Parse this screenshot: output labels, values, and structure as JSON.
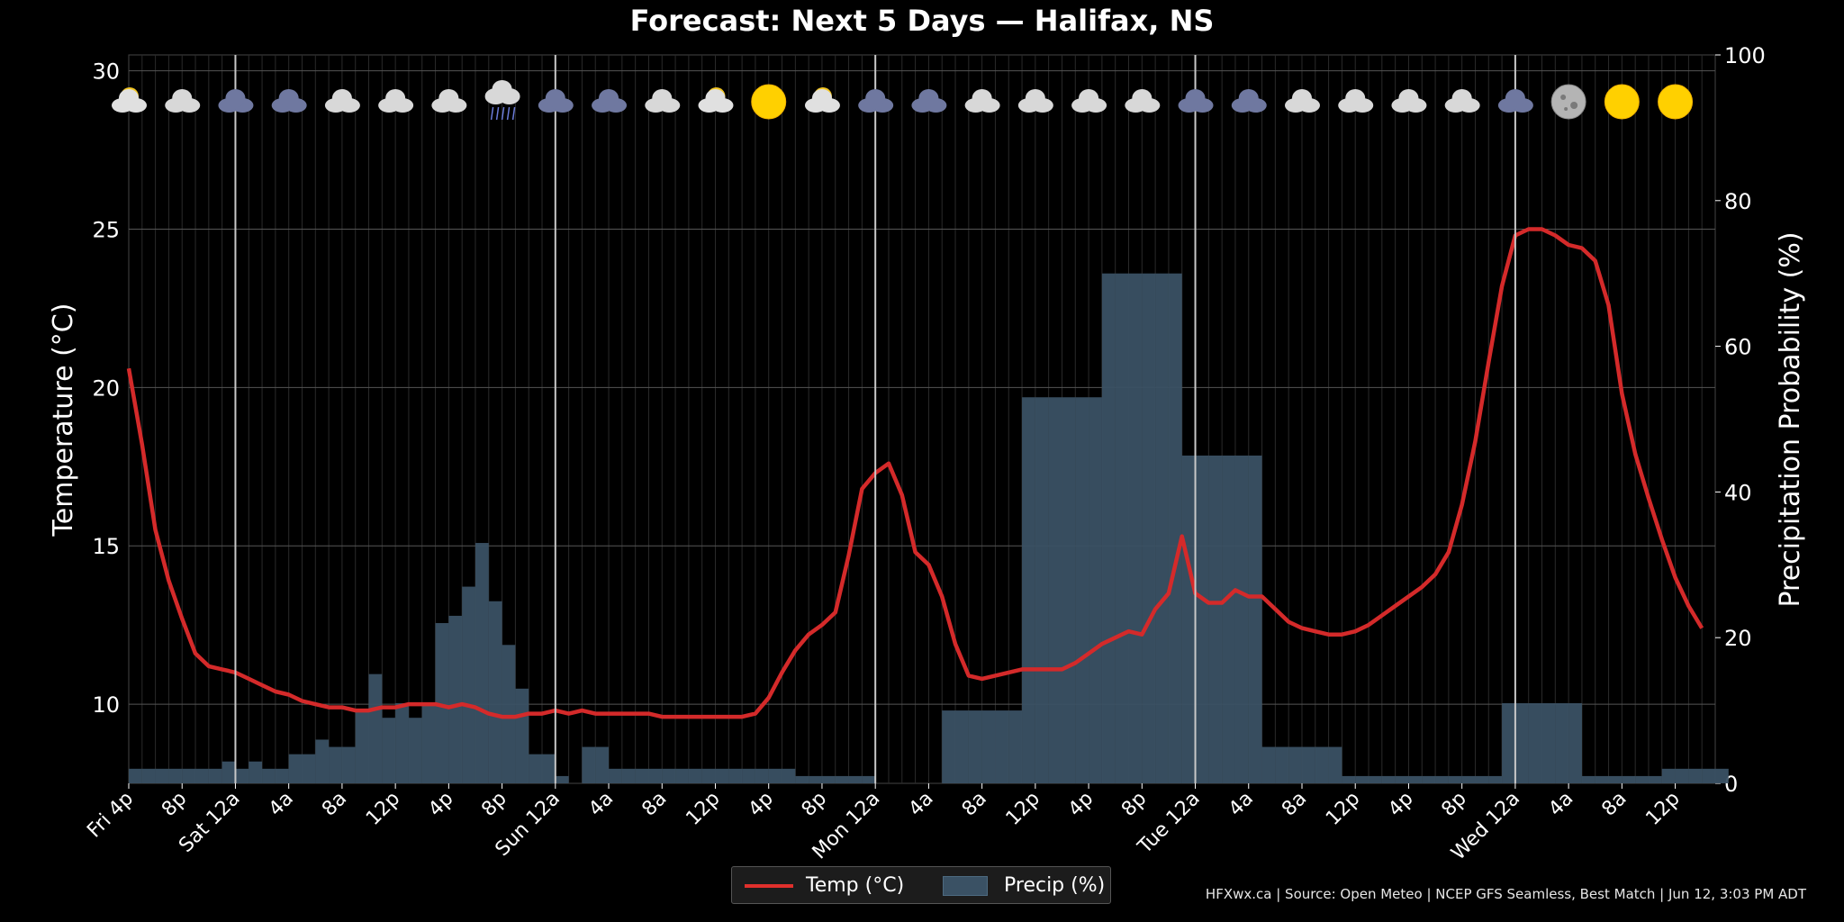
{
  "title": "Forecast: Next 5 Days — Halifax, NS",
  "footer": "HFXwx.ca | Source: Open Meteo | NCEP GFS Seamless, Best Match | Jun 12, 3:03 PM ADT",
  "legend": {
    "temp_label": "Temp (°C)",
    "precip_label": "Precip (%)"
  },
  "colors": {
    "temp": "#d42a2a",
    "precip": "#3a5164",
    "background": "#000000",
    "day_divider": "#c8c8c8"
  },
  "chart_data": {
    "type": "line",
    "title": "Forecast: Next 5 Days — Halifax, NS",
    "ylabel": "Temperature (°C)",
    "y2label": "Precipitation Probability (%)",
    "ylim": [
      7.5,
      30.5
    ],
    "y2lim": [
      0,
      100
    ],
    "yticks": [
      10,
      15,
      20,
      25,
      30
    ],
    "y2ticks": [
      0,
      20,
      40,
      60,
      80,
      100
    ],
    "hours": 119,
    "x_tick_labels": [
      "Fri 4p",
      "8p",
      "Sat 12a",
      "4a",
      "8a",
      "12p",
      "4p",
      "8p",
      "Sun 12a",
      "4a",
      "8a",
      "12p",
      "4p",
      "8p",
      "Mon 12a",
      "4a",
      "8a",
      "12p",
      "4p",
      "8p",
      "Tue 12a",
      "4a",
      "8a",
      "12p",
      "4p",
      "8p",
      "Wed 12a",
      "4a",
      "8a",
      "12p"
    ],
    "day_dividers": [
      "Sat 12a",
      "Sun 12a",
      "Mon 12a",
      "Tue 12a",
      "Wed 12a"
    ],
    "grid": true,
    "legend_position": "bottom-center",
    "series": [
      {
        "name": "Temp (°C)",
        "type": "line",
        "axis": "left",
        "values": [
          20.6,
          18.2,
          15.5,
          13.9,
          12.7,
          11.6,
          11.2,
          11.1,
          11.0,
          10.8,
          10.6,
          10.4,
          10.3,
          10.1,
          10.0,
          9.9,
          9.9,
          9.8,
          9.8,
          9.9,
          9.9,
          10.0,
          10.0,
          10.0,
          9.9,
          10.0,
          9.9,
          9.7,
          9.6,
          9.6,
          9.7,
          9.7,
          9.8,
          9.7,
          9.8,
          9.7,
          9.7,
          9.7,
          9.7,
          9.7,
          9.6,
          9.6,
          9.6,
          9.6,
          9.6,
          9.6,
          9.6,
          9.7,
          10.2,
          11.0,
          11.7,
          12.2,
          12.5,
          12.9,
          14.7,
          16.8,
          17.3,
          17.6,
          16.6,
          14.8,
          14.4,
          13.4,
          11.9,
          10.9,
          10.8,
          10.9,
          11.0,
          11.1,
          11.1,
          11.1,
          11.1,
          11.3,
          11.6,
          11.9,
          12.1,
          12.3,
          12.2,
          13.0,
          13.5,
          15.3,
          13.5,
          13.2,
          13.2,
          13.6,
          13.4,
          13.4,
          13.0,
          12.6,
          12.4,
          12.3,
          12.2,
          12.2,
          12.3,
          12.5,
          12.8,
          13.1,
          13.4,
          13.7,
          14.1,
          14.8,
          16.3,
          18.3,
          20.8,
          23.2,
          24.8,
          25.0,
          25.0,
          24.8,
          24.5,
          24.4,
          24.0,
          22.6,
          19.8,
          17.9,
          16.5,
          15.2,
          14.0,
          13.1,
          12.4
        ]
      },
      {
        "name": "Precip (%)",
        "type": "bar",
        "axis": "right",
        "values": [
          2,
          2,
          2,
          2,
          2,
          2,
          2,
          3,
          2,
          3,
          2,
          2,
          4,
          4,
          6,
          5,
          5,
          10,
          15,
          9,
          11,
          9,
          11,
          22,
          23,
          27,
          33,
          25,
          19,
          13,
          4,
          4,
          1,
          0,
          5,
          5,
          2,
          2,
          2,
          2,
          2,
          2,
          2,
          2,
          2,
          2,
          2,
          2,
          2,
          2,
          1,
          1,
          1,
          1,
          1,
          1,
          0,
          0,
          0,
          0,
          0,
          10,
          10,
          10,
          10,
          10,
          10,
          53,
          53,
          53,
          53,
          53,
          53,
          70,
          70,
          70,
          70,
          70,
          70,
          45,
          45,
          45,
          45,
          45,
          45,
          5,
          5,
          5,
          5,
          5,
          5,
          1,
          1,
          1,
          1,
          1,
          1,
          1,
          1,
          1,
          1,
          1,
          1,
          11,
          11,
          11,
          11,
          11,
          11,
          1,
          1,
          1,
          1,
          1,
          1,
          2,
          2,
          2,
          2,
          2
        ]
      }
    ],
    "weather_icons": [
      "partly-cloudy",
      "cloudy",
      "overcast",
      "overcast",
      "cloudy",
      "cloudy",
      "cloudy",
      "rain",
      "overcast",
      "overcast",
      "cloudy",
      "partly-cloudy",
      "sunny",
      "partly-cloudy",
      "overcast",
      "overcast",
      "cloudy",
      "cloudy",
      "cloudy",
      "cloudy",
      "overcast",
      "overcast",
      "cloudy",
      "cloudy",
      "cloudy",
      "cloudy",
      "overcast",
      "moon",
      "sunny",
      "sunny"
    ]
  }
}
